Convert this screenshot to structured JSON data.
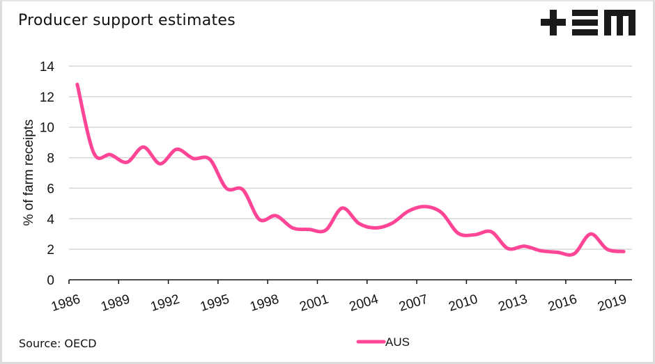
{
  "header": {
    "title": "Producer support estimates",
    "logo": {
      "name": "tem-logo",
      "glyphs": [
        "plus",
        "equals-triple",
        "m"
      ],
      "color": "#1a1a1a"
    }
  },
  "footer": {
    "source": "Source: OECD"
  },
  "chart_data": {
    "type": "line",
    "title": "Producer support estimates",
    "xlabel": "",
    "ylabel": "% of farm receipts",
    "ylim": [
      0,
      14
    ],
    "yticks": [
      0,
      2,
      4,
      6,
      8,
      10,
      12,
      14
    ],
    "ytick_labels": [
      "0",
      "2",
      "4",
      "6",
      "8",
      "10",
      "12",
      "14"
    ],
    "xtick_labels": [
      "1986",
      "1989",
      "1992",
      "1995",
      "1998",
      "2001",
      "2004",
      "2007",
      "2010",
      "2013",
      "2016",
      "2019"
    ],
    "grid": true,
    "legend": "bottom-center",
    "line_color": "#ff4595",
    "x": [
      1986,
      1987,
      1988,
      1989,
      1990,
      1991,
      1992,
      1993,
      1994,
      1995,
      1996,
      1997,
      1998,
      1999,
      2000,
      2001,
      2002,
      2003,
      2004,
      2005,
      2006,
      2007,
      2008,
      2009,
      2010,
      2011,
      2012,
      2013,
      2014,
      2015,
      2016,
      2017,
      2018,
      2019
    ],
    "series": [
      {
        "name": "AUS",
        "values": [
          12.8,
          8.3,
          8.2,
          7.7,
          8.7,
          7.6,
          8.55,
          7.95,
          7.9,
          6.0,
          5.9,
          3.95,
          4.2,
          3.4,
          3.3,
          3.25,
          4.7,
          3.7,
          3.4,
          3.7,
          4.5,
          4.8,
          4.4,
          3.05,
          2.95,
          3.15,
          2.05,
          2.2,
          1.9,
          1.8,
          1.7,
          3.0,
          2.0,
          1.85
        ]
      }
    ]
  }
}
